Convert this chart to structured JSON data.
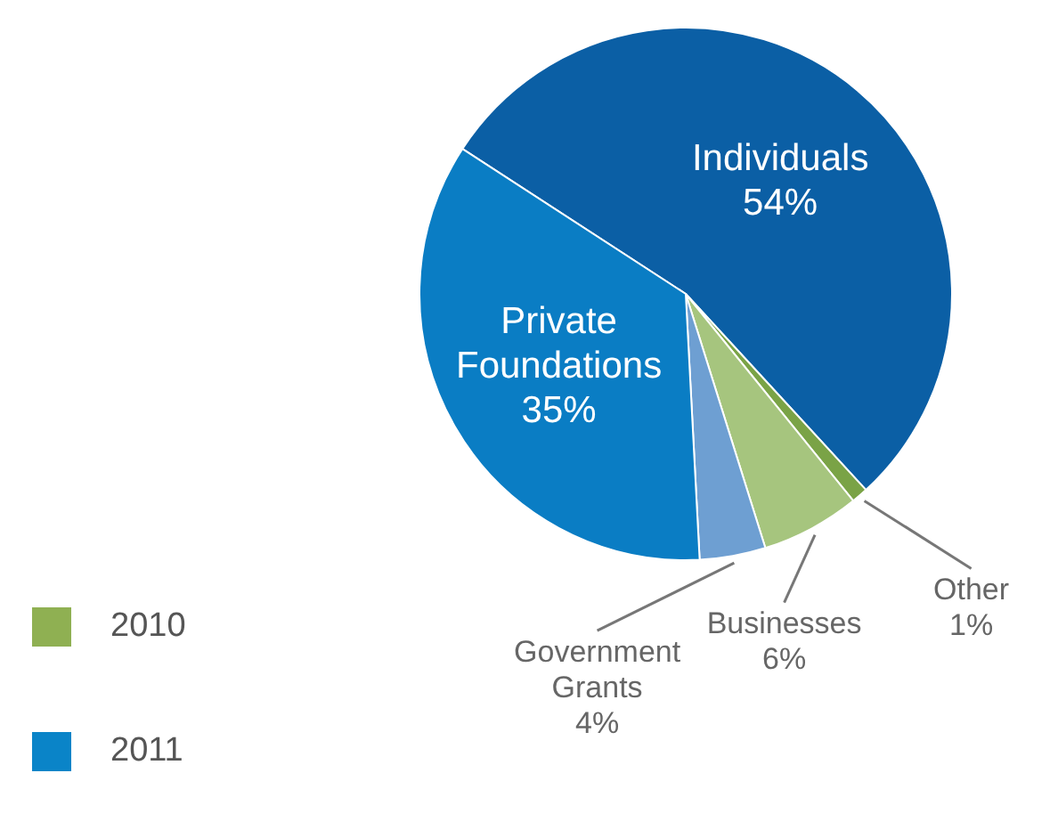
{
  "chart_data": {
    "type": "pie",
    "categories": [
      "Individuals",
      "Other",
      "Businesses",
      "Government Grants",
      "Private Foundations"
    ],
    "values": [
      54,
      1,
      6,
      4,
      35
    ],
    "colors": [
      "#0b5fa5",
      "#7aa346",
      "#a6c57e",
      "#6e9fd2",
      "#0a7dc4"
    ],
    "value_labels": [
      "54%",
      "1%",
      "6%",
      "4%",
      "35%"
    ],
    "legend": false,
    "annotations": [
      "2010",
      "2011"
    ]
  }
}
